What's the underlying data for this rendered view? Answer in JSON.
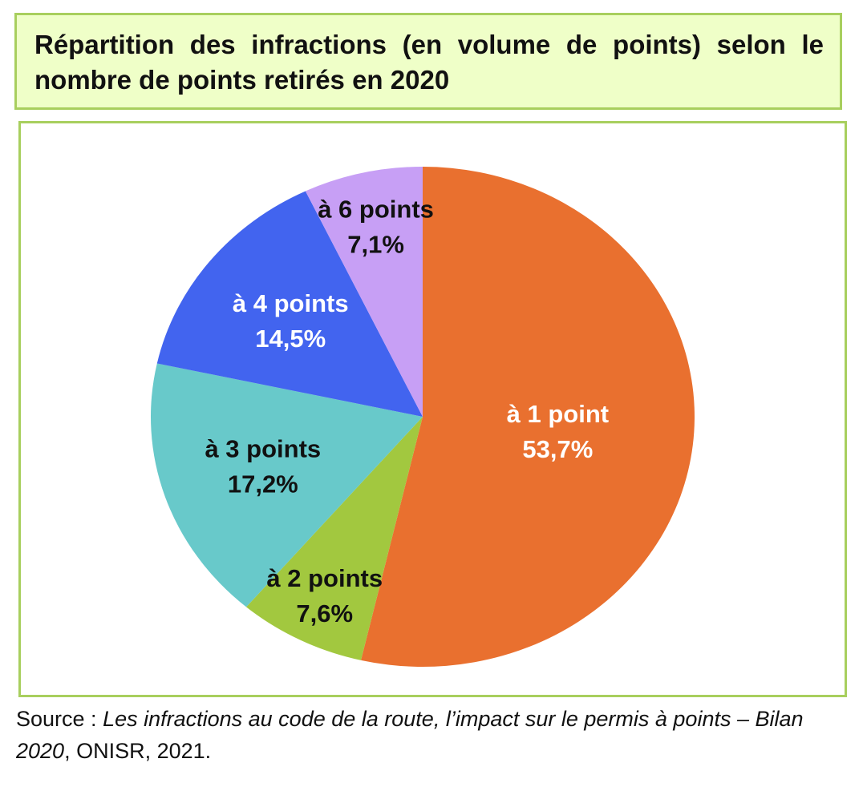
{
  "title": "Répartition des infractions (en volume de points) selon le nombre de points retirés en 2020",
  "chart_data": {
    "type": "pie",
    "start_angle_deg": 0,
    "direction": "clockwise",
    "slices": [
      {
        "label": "à 1 point",
        "value": 53.7,
        "value_label": "53,7%",
        "color": "#e9702f",
        "text_color": "#ffffff"
      },
      {
        "label": "à 2 points",
        "value": 7.6,
        "value_label": "7,6%",
        "color": "#a2c83f",
        "text_color": "#111111"
      },
      {
        "label": "à 3 points",
        "value": 17.2,
        "value_label": "17,2%",
        "color": "#68c9ca",
        "text_color": "#111111"
      },
      {
        "label": "à 4 points",
        "value": 14.5,
        "value_label": "14,5%",
        "color": "#4264ef",
        "text_color": "#ffffff"
      },
      {
        "label": "à 6 points",
        "value": 7.1,
        "value_label": "7,1%",
        "color": "#c79ff5",
        "text_color": "#111111"
      }
    ]
  },
  "source": {
    "prefix": "Source : ",
    "title_part1": "Les infractions au code de la route, l’impact sur le permis à points – Bilan 2020",
    "suffix": ", ONISR, 2021."
  },
  "colors": {
    "title_background": "#efffc8",
    "frame_border": "#a8cf5e"
  }
}
